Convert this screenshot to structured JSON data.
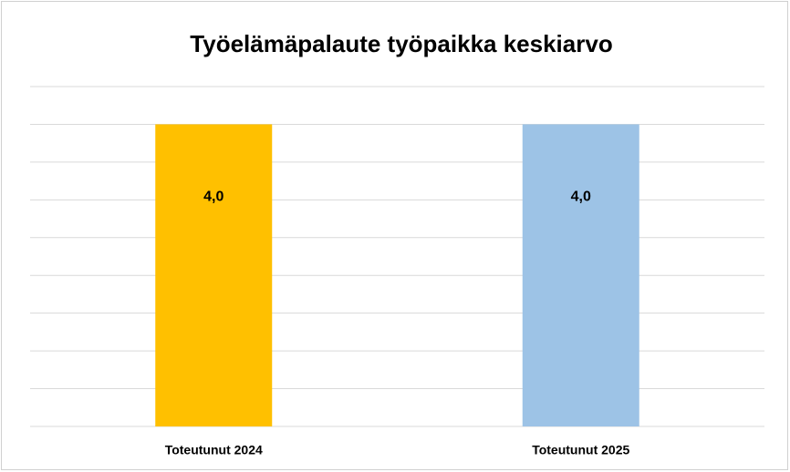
{
  "chart_data": {
    "type": "bar",
    "title": "Työelämäpalaute työpaikka keskiarvo",
    "categories": [
      "Toteutunut 2024",
      "Toteutunut 2025"
    ],
    "values": [
      4.0,
      4.0
    ],
    "value_labels": [
      "4,0",
      "4,0"
    ],
    "colors": [
      "#ffc000",
      "#9dc3e6"
    ],
    "ylim": [
      0,
      4.5
    ],
    "yticks": [
      0,
      0.5,
      1,
      1.5,
      2,
      2.5,
      3,
      3.5,
      4,
      4.5
    ],
    "grid": true
  }
}
